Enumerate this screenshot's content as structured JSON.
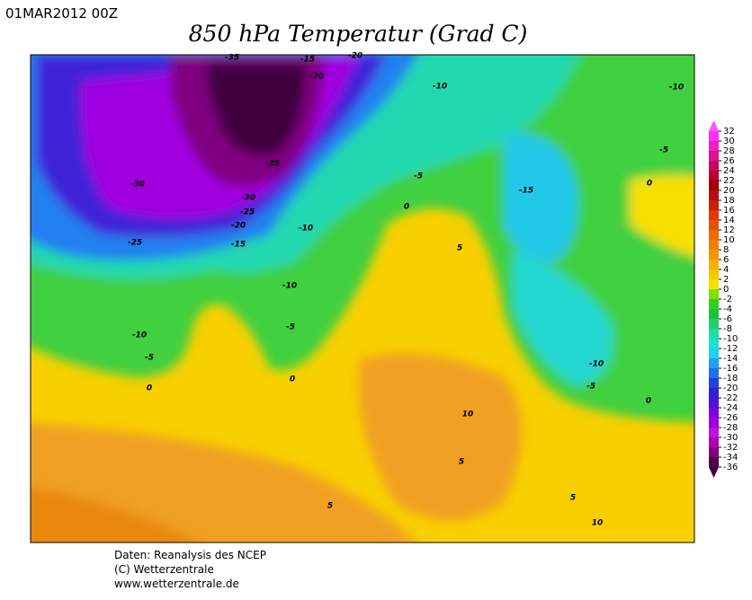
{
  "header": {
    "date": "01MAR2012 00Z",
    "title": "850 hPa Temperatur (Grad C)"
  },
  "colorbar": {
    "labels": [
      32,
      30,
      28,
      26,
      24,
      22,
      20,
      18,
      16,
      14,
      12,
      10,
      8,
      6,
      4,
      2,
      0,
      -2,
      -4,
      -6,
      -8,
      -10,
      -12,
      -14,
      -16,
      -18,
      -20,
      -22,
      -24,
      -26,
      -28,
      -30,
      -32,
      -34,
      -36
    ],
    "colors": [
      "#ff30ff",
      "#f020c0",
      "#e01090",
      "#d00060",
      "#b80030",
      "#a00000",
      "#b01010",
      "#c82000",
      "#e03800",
      "#e85000",
      "#f06800",
      "#f08000",
      "#f09800",
      "#f8b000",
      "#f8c800",
      "#f8e000",
      "#80e000",
      "#30d020",
      "#20c040",
      "#20d070",
      "#20e0a0",
      "#20e0d0",
      "#20d0f0",
      "#20a0f0",
      "#2070f0",
      "#2040e0",
      "#3020d0",
      "#5010e0",
      "#8000e0",
      "#a000e0",
      "#c010e0",
      "#b000b0",
      "#800080",
      "#500050"
    ]
  },
  "contour_labels": [
    -35,
    -15,
    -20,
    -20,
    -10,
    -10,
    -35,
    -30,
    -30,
    -25,
    -20,
    -15,
    -25,
    -10,
    -5,
    -15,
    -5,
    0,
    0,
    5,
    -10,
    -5,
    -10,
    -5,
    0,
    0,
    -10,
    -5,
    0,
    10,
    5,
    5,
    10,
    5
  ],
  "footer": {
    "lines": [
      "Daten: Reanalysis des NCEP",
      "(C) Wetterzentrale",
      "www.wetterzentrale.de"
    ]
  }
}
